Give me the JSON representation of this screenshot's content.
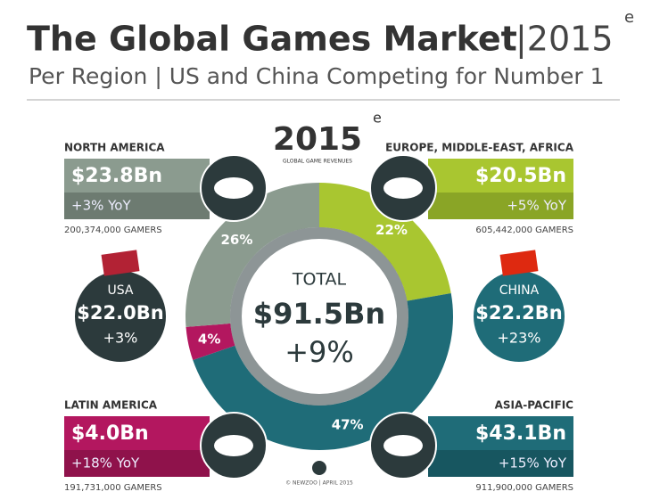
{
  "header": {
    "title": "The Global Games Market",
    "year": "|2015",
    "year_suffix": "e",
    "subtitle": "Per Region | US and China Competing for Number 1"
  },
  "badge": {
    "year": "2015",
    "suffix": "e",
    "caption": "GLOBAL GAME REVENUES"
  },
  "chart_data": {
    "type": "pie",
    "donut": true,
    "categories": [
      "EUROPE, MIDDLE-EAST, AFRICA",
      "ASIA-PACIFIC",
      "LATIN AMERICA",
      "NORTH AMERICA"
    ],
    "values": [
      22,
      47,
      4,
      26
    ],
    "value_labels": [
      "22%",
      "47%",
      "4%",
      "26%"
    ],
    "colors": [
      "#a9c630",
      "#1f6c78",
      "#b3175f",
      "#8b9b8f"
    ]
  },
  "center": {
    "label": "TOTAL",
    "value": "$91.5Bn",
    "growth": "+9%"
  },
  "regions": [
    {
      "revenue": "$20.5Bn",
      "growth": "+5% YoY",
      "gamers": "605,442,000 GAMERS"
    },
    {
      "revenue": "$43.1Bn",
      "growth": "+15% YoY",
      "gamers": "911,900,000 GAMERS"
    },
    {
      "revenue": "$4.0Bn",
      "growth": "+18% YoY",
      "gamers": "191,731,000 GAMERS"
    },
    {
      "revenue": "$23.8Bn",
      "growth": "+3% YoY",
      "gamers": "200,374,000 GAMERS"
    }
  ],
  "countries": [
    {
      "name": "USA",
      "revenue": "$22.0Bn",
      "growth": "+3%"
    },
    {
      "name": "CHINA",
      "revenue": "$22.2Bn",
      "growth": "+23%"
    }
  ],
  "footer": "© NEWZOO | APRIL 2015"
}
